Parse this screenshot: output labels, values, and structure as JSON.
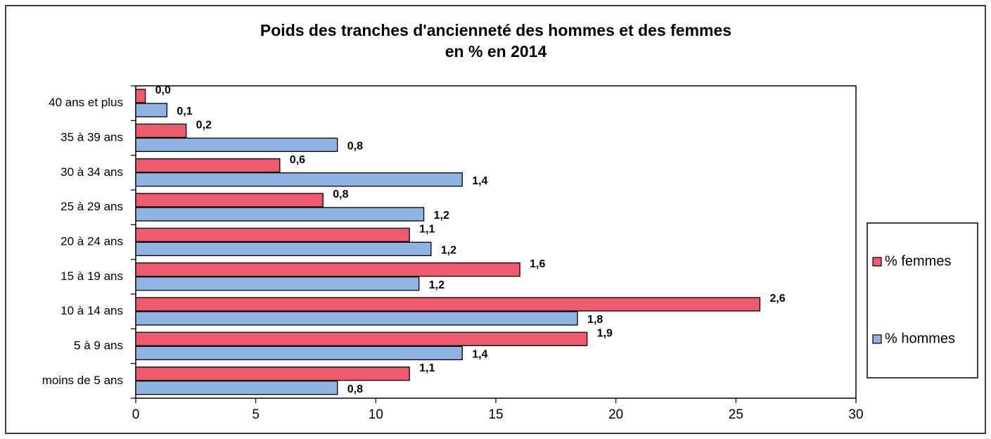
{
  "chart_data": {
    "type": "bar",
    "orientation": "horizontal",
    "title": [
      "Poids des tranches d'ancienneté des hommes et des femmes",
      "en % en 2014"
    ],
    "categories": [
      "40 ans et plus",
      "35 à 39 ans",
      "30 à 34 ans",
      "25 à 29 ans",
      "20 à 24 ans",
      "15 à 19 ans",
      "10 à 14 ans",
      "5 à 9 ans",
      "moins de 5 ans"
    ],
    "series": [
      {
        "name": "% femmes",
        "color": "#ee5b6e",
        "values": [
          0.4,
          2.1,
          6.0,
          7.8,
          11.4,
          16.0,
          26.0,
          18.8,
          11.4
        ],
        "value_labels": [
          "0,0",
          "0,2",
          "0,6",
          "0,8",
          "1,1",
          "1,6",
          "2,6",
          "1,9",
          "1,1"
        ]
      },
      {
        "name": "% hommes",
        "color": "#8fb4e3",
        "values": [
          1.3,
          8.4,
          13.6,
          12.0,
          12.3,
          11.8,
          18.4,
          13.6,
          8.4
        ],
        "value_labels": [
          "0,1",
          "0,8",
          "1,4",
          "1,2",
          "1,2",
          "1,2",
          "1,8",
          "1,4",
          "0,8"
        ]
      }
    ],
    "xlim": [
      0,
      30
    ],
    "xticks": [
      0,
      5,
      10,
      15,
      20,
      25,
      30
    ],
    "legend": "right"
  }
}
